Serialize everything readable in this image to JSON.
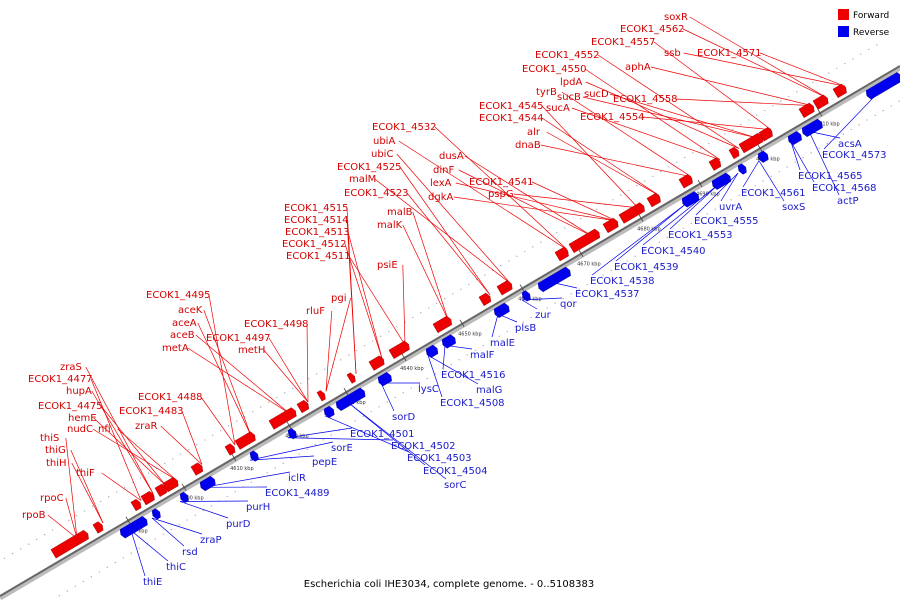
{
  "caption": "Escherichia coli IHE3034, complete genome. - 0..5108383",
  "legend": {
    "forward": {
      "label": "Forward",
      "color": "#ee0000"
    },
    "reverse": {
      "label": "Reverse",
      "color": "#0000ee"
    }
  },
  "axis": {
    "color": "#777777",
    "ticks": [
      "4590 kbp",
      "4600 kbp",
      "4610 kbp",
      "4620 kbp",
      "4630 kbp",
      "4640 kbp",
      "4650 kbp",
      "4660 kbp",
      "4670 kbp",
      "4680 kbp",
      "4690 kbp",
      "4700 kbp",
      "4710 kbp"
    ]
  },
  "forward_labels": [
    "rpoB",
    "rpoC",
    "thiS",
    "thiG",
    "thiH",
    "thiF",
    "ECOK1_4477",
    "zraS",
    "hupA",
    "ECOK1_4475",
    "hemE",
    "nudC",
    "nfi",
    "ECOK1_4483",
    "zraR",
    "ECOK1_4488",
    "ECOK1_4495",
    "aceK",
    "aceA",
    "aceB",
    "metA",
    "ECOK1_4497",
    "ECOK1_4498",
    "metH",
    "rluF",
    "pgi",
    "ECOK1_4515",
    "ECOK1_4514",
    "ECOK1_4513",
    "ECOK1_4512",
    "ECOK1_4511",
    "psiE",
    "malB",
    "malK",
    "ECOK1_4523",
    "ECOK1_4525",
    "malM",
    "ubiC",
    "ubiA",
    "ECOK1_4532",
    "dusA",
    "dinF",
    "lexA",
    "dgkA",
    "ECOK1_4541",
    "pspG",
    "ECOK1_4545",
    "ECOK1_4544",
    "alr",
    "dnaB",
    "tyrB",
    "sucA",
    "ECOK1_4550",
    "ECOK1_4552",
    "lpdA",
    "sucB",
    "sucD",
    "ECOK1_4554",
    "ECOK1_4557",
    "aphA",
    "ECOK1_4558",
    "ECOK1_4562",
    "soxR",
    "ssb",
    "ECOK1_4571"
  ],
  "reverse_labels": [
    "thiE",
    "thiC",
    "rsd",
    "zraP",
    "purD",
    "purH",
    "ECOK1_4489",
    "iclR",
    "pepE",
    "sorE",
    "ECOK1_4501",
    "ECOK1_4502",
    "ECOK1_4503",
    "ECOK1_4504",
    "sorC",
    "sorD",
    "lysC",
    "ECOK1_4508",
    "malG",
    "ECOK1_4516",
    "malF",
    "malE",
    "plsB",
    "zur",
    "qor",
    "ECOK1_4537",
    "ECOK1_4538",
    "ECOK1_4539",
    "ECOK1_4540",
    "ECOK1_4553",
    "ECOK1_4555",
    "uvrA",
    "ECOK1_4561",
    "soxS",
    "ECOK1_4565",
    "ECOK1_4568",
    "actP",
    "acsA",
    "ECOK1_4573"
  ]
}
